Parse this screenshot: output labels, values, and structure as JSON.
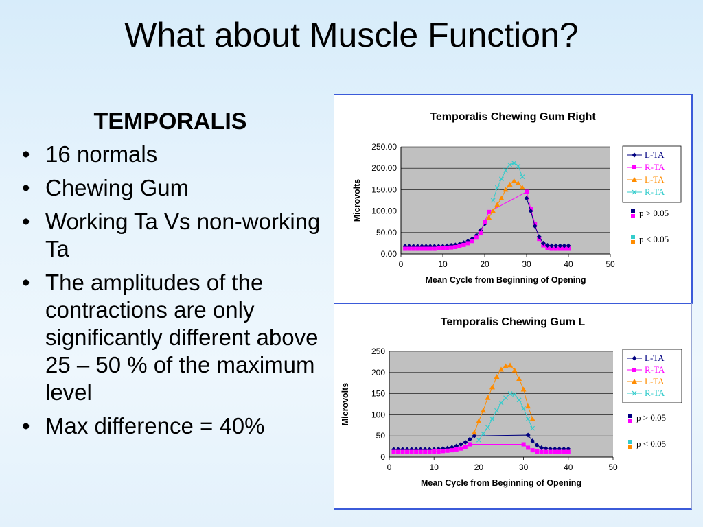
{
  "slide": {
    "title": "What about Muscle Function?",
    "subhead": "TEMPORALIS",
    "bullets": [
      "16 normals",
      "Chewing Gum",
      "Working Ta Vs non-working Ta",
      "The amplitudes of the contractions are only significantly different above 25 – 50 % of the maximum level",
      "Max difference = 40%"
    ]
  },
  "colors": {
    "background": "#dceefb",
    "plot_bg": "#c0c0c0",
    "l_ta": "#000080",
    "r_ta": "#ff00ff",
    "l_ta_2": "#ff8c00",
    "r_ta_2": "#33cccc"
  },
  "chart_data": [
    {
      "type": "line",
      "title": "Temporalis Chewing Gum Right",
      "xlabel": "Mean Cycle from Beginning of Opening",
      "ylabel": "Microvolts",
      "xlim": [
        0,
        50
      ],
      "ylim": [
        0,
        250
      ],
      "xticks": [
        "0",
        "10",
        "20",
        "30",
        "40",
        "50"
      ],
      "yticks": [
        "0.00",
        "50.00",
        "100.00",
        "150.00",
        "200.00",
        "250.00"
      ],
      "legend_position": "right",
      "legend": [
        "L-TA",
        "R-TA",
        "L-TA",
        "R-TA"
      ],
      "p_labels": [
        "p > 0.05",
        "p < 0.05"
      ],
      "series": [
        {
          "name": "L-TA",
          "color": "#000080",
          "marker": "diamond",
          "points": [
            [
              1,
              18
            ],
            [
              2,
              18
            ],
            [
              3,
              18
            ],
            [
              4,
              18
            ],
            [
              5,
              18
            ],
            [
              6,
              18
            ],
            [
              7,
              18
            ],
            [
              8,
              18
            ],
            [
              9,
              18
            ],
            [
              10,
              18
            ],
            [
              11,
              19
            ],
            [
              12,
              20
            ],
            [
              13,
              21
            ],
            [
              14,
              23
            ],
            [
              15,
              26
            ],
            [
              16,
              30
            ],
            [
              17,
              35
            ],
            [
              18,
              43
            ],
            [
              19,
              55
            ],
            [
              20,
              70
            ]
          ]
        },
        {
          "name": "R-TA",
          "color": "#ff00ff",
          "marker": "square",
          "points": [
            [
              1,
              12
            ],
            [
              2,
              12
            ],
            [
              3,
              12
            ],
            [
              4,
              12
            ],
            [
              5,
              12
            ],
            [
              6,
              12
            ],
            [
              7,
              12
            ],
            [
              8,
              12
            ],
            [
              9,
              13
            ],
            [
              10,
              13
            ],
            [
              11,
              14
            ],
            [
              12,
              15
            ],
            [
              13,
              16
            ],
            [
              14,
              18
            ],
            [
              15,
              21
            ],
            [
              16,
              25
            ],
            [
              17,
              30
            ],
            [
              18,
              38
            ],
            [
              19,
              48
            ],
            [
              20,
              75
            ],
            [
              21,
              98
            ],
            [
              30,
              145
            ],
            [
              31,
              105
            ],
            [
              32,
              70
            ],
            [
              33,
              35
            ],
            [
              34,
              20
            ],
            [
              35,
              14
            ],
            [
              36,
              12
            ],
            [
              37,
              12
            ],
            [
              38,
              12
            ],
            [
              39,
              12
            ],
            [
              40,
              12
            ]
          ]
        },
        {
          "name": "L-TA",
          "color": "#ff8c00",
          "marker": "triangle",
          "points": [
            [
              21,
              85
            ],
            [
              22,
              100
            ],
            [
              23,
              115
            ],
            [
              24,
              130
            ],
            [
              25,
              150
            ],
            [
              26,
              162
            ],
            [
              27,
              170
            ],
            [
              28,
              165
            ],
            [
              29,
              155
            ]
          ]
        },
        {
          "name": "R-TA",
          "color": "#33cccc",
          "marker": "x",
          "points": [
            [
              22,
              125
            ],
            [
              23,
              155
            ],
            [
              24,
              175
            ],
            [
              25,
              195
            ],
            [
              26,
              208
            ],
            [
              27,
              212
            ],
            [
              28,
              205
            ],
            [
              29,
              180
            ]
          ]
        },
        {
          "name": "L-TA",
          "color": "#000080",
          "marker": "diamond",
          "points": [
            [
              30,
              130
            ],
            [
              31,
              100
            ],
            [
              32,
              65
            ],
            [
              33,
              40
            ],
            [
              34,
              25
            ],
            [
              35,
              20
            ],
            [
              36,
              19
            ],
            [
              37,
              19
            ],
            [
              38,
              19
            ],
            [
              39,
              19
            ],
            [
              40,
              19
            ]
          ]
        }
      ]
    },
    {
      "type": "line",
      "title": "Temporalis Chewing Gum L",
      "xlabel": "Mean Cycle from Beginning of Opening",
      "ylabel": "Microvolts",
      "xlim": [
        0,
        50
      ],
      "ylim": [
        0,
        250
      ],
      "xticks": [
        "0",
        "10",
        "20",
        "30",
        "40",
        "50"
      ],
      "yticks": [
        "0",
        "50",
        "100",
        "150",
        "200",
        "250"
      ],
      "legend_position": "right",
      "legend": [
        "L-TA",
        "R-TA",
        "L-TA",
        "R-TA"
      ],
      "p_labels": [
        "p > 0.05",
        "p < 0.05"
      ],
      "series": [
        {
          "name": "L-TA",
          "color": "#000080",
          "marker": "diamond",
          "points": [
            [
              1,
              18
            ],
            [
              2,
              18
            ],
            [
              3,
              18
            ],
            [
              4,
              18
            ],
            [
              5,
              18
            ],
            [
              6,
              18
            ],
            [
              7,
              18
            ],
            [
              8,
              18
            ],
            [
              9,
              18
            ],
            [
              10,
              18
            ],
            [
              11,
              19
            ],
            [
              12,
              20
            ],
            [
              13,
              21
            ],
            [
              14,
              23
            ],
            [
              15,
              26
            ],
            [
              16,
              30
            ],
            [
              17,
              35
            ],
            [
              18,
              42
            ],
            [
              19,
              50
            ],
            [
              31,
              52
            ],
            [
              32,
              38
            ],
            [
              33,
              28
            ],
            [
              34,
              22
            ],
            [
              35,
              20
            ],
            [
              36,
              19
            ],
            [
              37,
              19
            ],
            [
              38,
              19
            ],
            [
              39,
              19
            ],
            [
              40,
              19
            ]
          ]
        },
        {
          "name": "R-TA",
          "color": "#ff00ff",
          "marker": "square",
          "points": [
            [
              1,
              12
            ],
            [
              2,
              12
            ],
            [
              3,
              12
            ],
            [
              4,
              12
            ],
            [
              5,
              12
            ],
            [
              6,
              12
            ],
            [
              7,
              12
            ],
            [
              8,
              12
            ],
            [
              9,
              12
            ],
            [
              10,
              13
            ],
            [
              11,
              13
            ],
            [
              12,
              14
            ],
            [
              13,
              15
            ],
            [
              14,
              16
            ],
            [
              15,
              18
            ],
            [
              16,
              20
            ],
            [
              17,
              24
            ],
            [
              18,
              30
            ],
            [
              30,
              30
            ],
            [
              31,
              22
            ],
            [
              32,
              16
            ],
            [
              33,
              13
            ],
            [
              34,
              12
            ],
            [
              35,
              12
            ],
            [
              36,
              12
            ],
            [
              37,
              12
            ],
            [
              38,
              12
            ],
            [
              39,
              12
            ],
            [
              40,
              12
            ]
          ]
        },
        {
          "name": "L-TA",
          "color": "#ff8c00",
          "marker": "triangle",
          "points": [
            [
              19,
              58
            ],
            [
              20,
              85
            ],
            [
              21,
              110
            ],
            [
              22,
              140
            ],
            [
              23,
              165
            ],
            [
              24,
              190
            ],
            [
              25,
              207
            ],
            [
              26,
              215
            ],
            [
              27,
              217
            ],
            [
              28,
              205
            ],
            [
              29,
              185
            ],
            [
              30,
              160
            ],
            [
              31,
              120
            ],
            [
              32,
              90
            ]
          ]
        },
        {
          "name": "R-TA",
          "color": "#33cccc",
          "marker": "x",
          "points": [
            [
              20,
              40
            ],
            [
              21,
              55
            ],
            [
              22,
              70
            ],
            [
              23,
              90
            ],
            [
              24,
              110
            ],
            [
              25,
              128
            ],
            [
              26,
              140
            ],
            [
              27,
              150
            ],
            [
              28,
              148
            ],
            [
              29,
              135
            ],
            [
              30,
              115
            ],
            [
              31,
              90
            ],
            [
              32,
              68
            ]
          ]
        }
      ]
    }
  ]
}
